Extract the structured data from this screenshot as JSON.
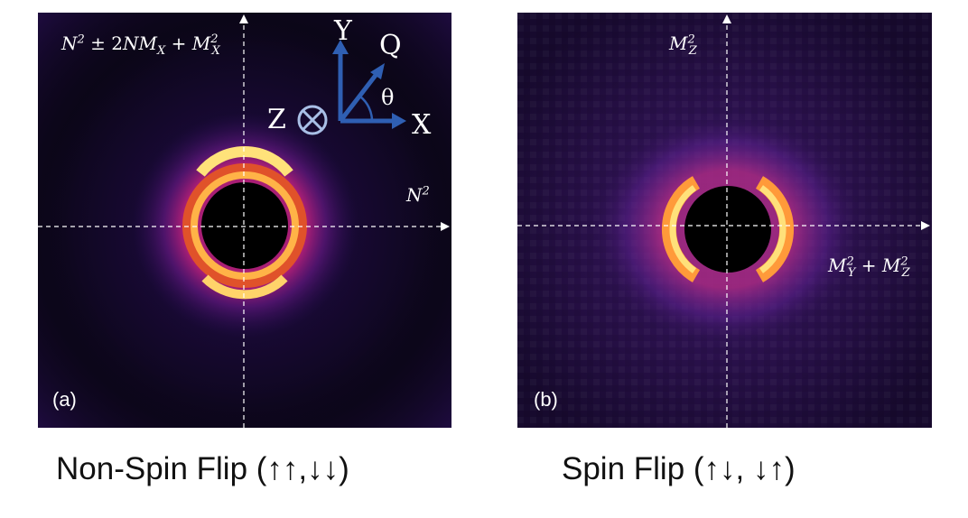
{
  "panel_a": {
    "label": "(a)",
    "top_formula": {
      "n": "N",
      "two": "2",
      "pm": " ± 2",
      "nm": "NM",
      "x1": "X",
      "plus": " + ",
      "m": "M",
      "x2": "X"
    },
    "right_formula": {
      "n": "N",
      "two": "2"
    },
    "caption": "Non-Spin Flip (↑↑,↓↓)",
    "inset": {
      "y": "Y",
      "q": "Q",
      "theta": "θ",
      "x": "X",
      "z": "Z"
    }
  },
  "panel_b": {
    "label": "(b)",
    "top_formula": {
      "m": "M",
      "sub": "Z",
      "sup": "2"
    },
    "right_formula": {
      "m1": "M",
      "sub1": "Y",
      "sup1": "2",
      "plus": " + ",
      "m2": "M",
      "sub2": "Z",
      "sup2": "2"
    },
    "caption": "Spin Flip (↑↓, ↓↑)"
  },
  "colors": {
    "axis_arrow": "#2f5fb3",
    "circle": "#a9bfe6",
    "ring_hot": "#ffe27a",
    "background": "#0a0514"
  }
}
